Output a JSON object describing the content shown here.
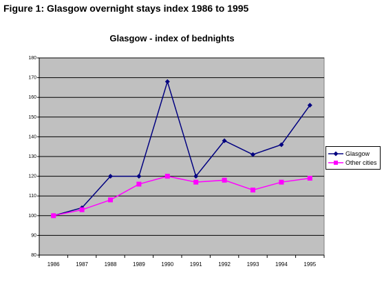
{
  "figure_heading": "Figure 1: Glasgow overnight stays index 1986 to 1995",
  "chart_data": {
    "type": "line",
    "title": "Glasgow - index of bednights",
    "xlabel": "",
    "ylabel": "",
    "categories": [
      "1986",
      "1987",
      "1988",
      "1989",
      "1990",
      "1991",
      "1992",
      "1993",
      "1994",
      "1995"
    ],
    "ylim": [
      80,
      180
    ],
    "yticks": [
      80,
      90,
      100,
      110,
      120,
      130,
      140,
      150,
      160,
      170,
      180
    ],
    "grid": true,
    "plot_background": "#c0c0c0",
    "legend_position": "right",
    "series": [
      {
        "name": "Glasgow",
        "color": "#000080",
        "marker": "diamond",
        "values": [
          100,
          104,
          120,
          120,
          168,
          120,
          138,
          131,
          136,
          156
        ]
      },
      {
        "name": "Other cities",
        "color": "#ff00ff",
        "marker": "square",
        "values": [
          100,
          103,
          108,
          116,
          120,
          117,
          118,
          113,
          117,
          119
        ]
      }
    ]
  }
}
